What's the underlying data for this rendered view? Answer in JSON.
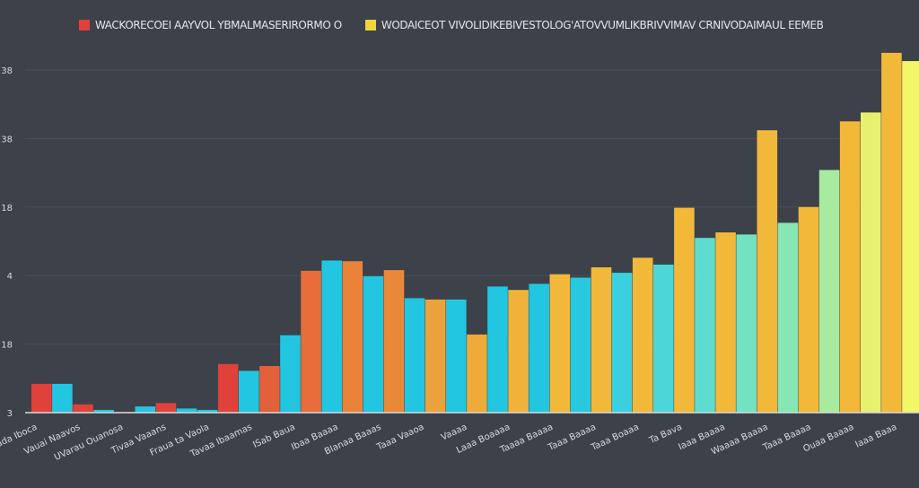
{
  "legend": [
    {
      "label": "WACKORECOEI AAYVOL YBMALMASERIRORMO O",
      "color": "#e0413a"
    },
    {
      "label": "WODAICEOT VIVOLIDIKEBIVESTOLOG'ATOVVUMLIKBRIVVIMAV CRNIVODAIMAUL EEMEB",
      "color": "#f2d33a"
    }
  ],
  "chart_data": {
    "type": "bar",
    "title": "",
    "xlabel": "",
    "ylabel": "",
    "ylim": [
      0,
      5.2
    ],
    "grid": true,
    "legend_position": "top",
    "y_ticks": [
      {
        "value": 0,
        "label": "3"
      },
      {
        "value": 1,
        "label": "18"
      },
      {
        "value": 2,
        "label": "4"
      },
      {
        "value": 3,
        "label": "18"
      },
      {
        "value": 4,
        "label": "38"
      },
      {
        "value": 5,
        "label": "38"
      }
    ],
    "categories": [
      "I ada Iboca",
      "Vauai Naavos",
      "UVarau Ouanosa",
      "Tivaa Vaaans",
      "Fraua ta Vaola",
      "Tavaa Ibaamas",
      "ISab Baua",
      "Ibaa Baaaa",
      "Blanaa Baaas",
      "Taaa Vaaoa",
      "Vaaaa",
      "Laaa Boaaaa",
      "Taaaa Baaaa",
      "Taaa Baaaa",
      "Taaa Boaaa",
      "Ta Bava",
      "Iaaa Baaaa",
      "Waaaa Baaaa",
      "Taaa Baaaa",
      "Ouaa Baaaa",
      "Iaaa Baaa"
    ],
    "bars": [
      {
        "value": 0.42,
        "color": "#e0413a"
      },
      {
        "value": 0.42,
        "color": "#22c6e0"
      },
      {
        "value": 0.12,
        "color": "#e0413a"
      },
      {
        "value": 0.04,
        "color": "#22c6e0"
      },
      {
        "value": 0.01,
        "color": "#e0413a"
      },
      {
        "value": 0.09,
        "color": "#22c6e0"
      },
      {
        "value": 0.14,
        "color": "#e0413a"
      },
      {
        "value": 0.06,
        "color": "#22c6e0"
      },
      {
        "value": 0.04,
        "color": "#22c6e0"
      },
      {
        "value": 0.71,
        "color": "#e0413a"
      },
      {
        "value": 0.61,
        "color": "#22c6e0"
      },
      {
        "value": 0.68,
        "color": "#e2603a"
      },
      {
        "value": 1.13,
        "color": "#22c6e0"
      },
      {
        "value": 2.07,
        "color": "#e86d3a"
      },
      {
        "value": 2.22,
        "color": "#22c6e0"
      },
      {
        "value": 2.21,
        "color": "#ea823a"
      },
      {
        "value": 1.99,
        "color": "#22c6e0"
      },
      {
        "value": 2.08,
        "color": "#ea883a"
      },
      {
        "value": 1.67,
        "color": "#22c6e0"
      },
      {
        "value": 1.65,
        "color": "#eca23a"
      },
      {
        "value": 1.65,
        "color": "#22c6e0"
      },
      {
        "value": 1.14,
        "color": "#eeaa3a"
      },
      {
        "value": 1.84,
        "color": "#22c6e0"
      },
      {
        "value": 1.79,
        "color": "#f0b23a"
      },
      {
        "value": 1.88,
        "color": "#22c6e0"
      },
      {
        "value": 2.02,
        "color": "#f2b83a"
      },
      {
        "value": 1.97,
        "color": "#28c9e0"
      },
      {
        "value": 2.12,
        "color": "#f2b83a"
      },
      {
        "value": 2.04,
        "color": "#3bd0e0"
      },
      {
        "value": 2.26,
        "color": "#f2b83a"
      },
      {
        "value": 2.16,
        "color": "#4dd6d8"
      },
      {
        "value": 2.99,
        "color": "#f2b83a"
      },
      {
        "value": 2.55,
        "color": "#5fdcd0"
      },
      {
        "value": 2.63,
        "color": "#f2b83a"
      },
      {
        "value": 2.6,
        "color": "#72e2c0"
      },
      {
        "value": 4.12,
        "color": "#f2b83a"
      },
      {
        "value": 2.77,
        "color": "#86e6b4"
      },
      {
        "value": 3.0,
        "color": "#f2b83a"
      },
      {
        "value": 3.54,
        "color": "#a8eaa0"
      },
      {
        "value": 4.25,
        "color": "#f2b83a"
      },
      {
        "value": 4.38,
        "color": "#e8f070"
      },
      {
        "value": 5.25,
        "color": "#f2b83a"
      },
      {
        "value": 5.13,
        "color": "#f4f66a"
      }
    ]
  }
}
